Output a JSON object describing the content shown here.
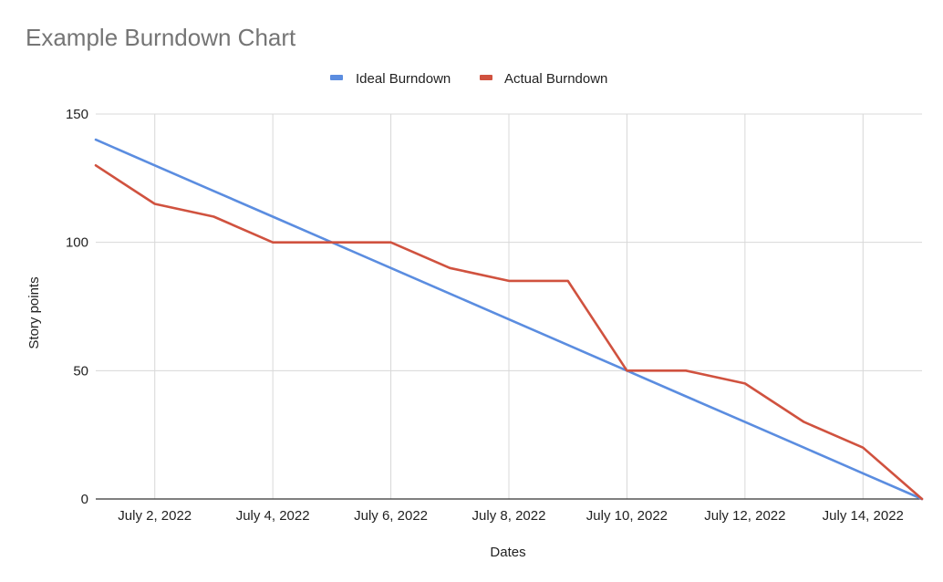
{
  "chart_data": {
    "type": "line",
    "title": "Example Burndown Chart",
    "xlabel": "Dates",
    "ylabel": "Story points",
    "ylim": [
      0,
      150
    ],
    "yticks": [
      "0",
      "50",
      "100",
      "150"
    ],
    "x": [
      "July 1, 2022",
      "July 2, 2022",
      "July 3, 2022",
      "July 4, 2022",
      "July 5, 2022",
      "July 6, 2022",
      "July 7, 2022",
      "July 8, 2022",
      "July 9, 2022",
      "July 10, 2022",
      "July 11, 2022",
      "July 12, 2022",
      "July 13, 2022",
      "July 14, 2022",
      "July 15, 2022"
    ],
    "xticks": [
      "July 2, 2022",
      "July 4, 2022",
      "July 6, 2022",
      "July 8, 2022",
      "July 10, 2022",
      "July 12, 2022",
      "July 14, 2022"
    ],
    "grid": true,
    "legend_position": "top",
    "series": [
      {
        "name": "Ideal Burndown",
        "color": "#5b8de0",
        "values": [
          140,
          130,
          120,
          110,
          100,
          90,
          80,
          70,
          60,
          50,
          40,
          30,
          20,
          10,
          0
        ]
      },
      {
        "name": "Actual Burndown",
        "color": "#d0523f",
        "values": [
          130,
          115,
          110,
          100,
          100,
          100,
          90,
          85,
          85,
          50,
          50,
          45,
          30,
          20,
          0
        ]
      }
    ]
  }
}
